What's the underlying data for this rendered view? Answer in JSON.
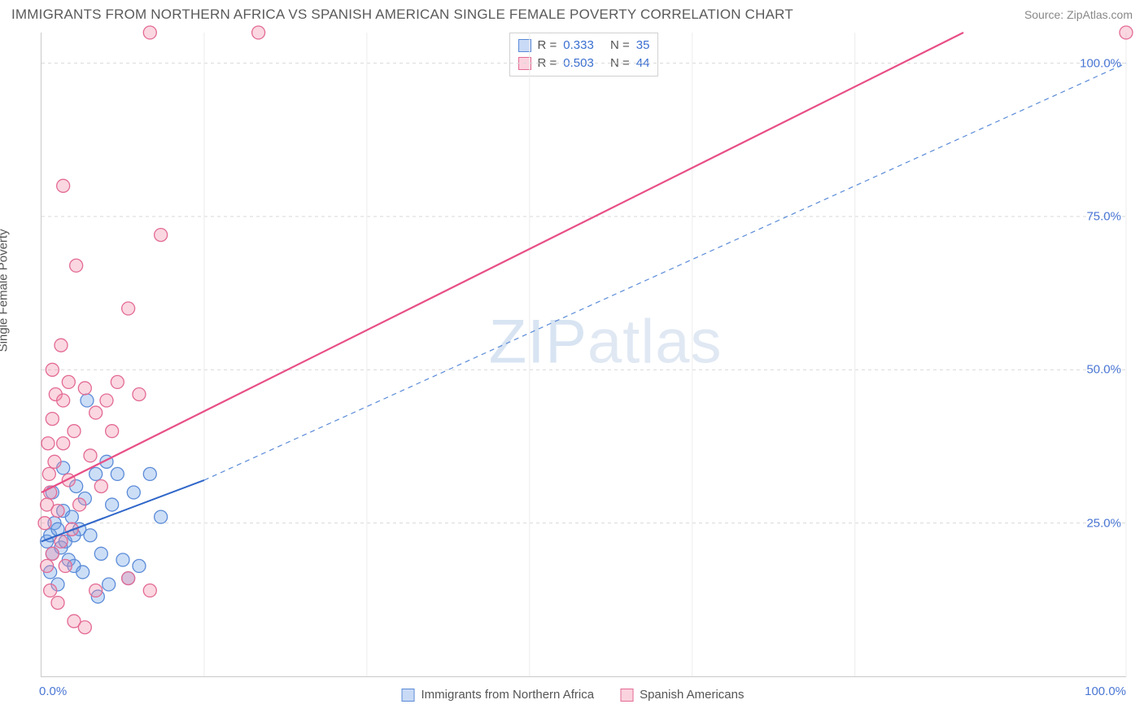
{
  "title": "IMMIGRANTS FROM NORTHERN AFRICA VS SPANISH AMERICAN SINGLE FEMALE POVERTY CORRELATION CHART",
  "source": "Source: ZipAtlas.com",
  "watermark_a": "ZIP",
  "watermark_b": "atlas",
  "ylabel": "Single Female Poverty",
  "chart": {
    "type": "scatter",
    "xlim": [
      0,
      100
    ],
    "ylim": [
      0,
      105
    ],
    "ytick_values": [
      25.0,
      50.0,
      75.0,
      100.0
    ],
    "ytick_labels": [
      "25.0%",
      "50.0%",
      "75.0%",
      "100.0%"
    ],
    "xtick_min_label": "0.0%",
    "xtick_max_label": "100.0%",
    "xticks_minor": [
      15,
      30,
      45,
      60,
      75,
      100
    ],
    "grid_color": "#d9d9d9",
    "background_color": "#ffffff",
    "series": [
      {
        "name": "Immigrants from Northern Africa",
        "color_fill": "rgba(110,160,230,0.35)",
        "color_stroke": "#5b8bd8",
        "r_value": "0.333",
        "n_value": "35",
        "marker_radius": 8,
        "line_solid": {
          "x1": 0,
          "y1": 22,
          "x2": 15,
          "y2": 32,
          "color": "#2f66c9",
          "width": 2.0
        },
        "line_dashed": {
          "x1": 15,
          "y1": 32,
          "x2": 100,
          "y2": 100,
          "color": "#5b8bd8",
          "width": 1.2,
          "dash": "6,5"
        },
        "points": [
          [
            0.5,
            22
          ],
          [
            0.8,
            23
          ],
          [
            1.0,
            20
          ],
          [
            1.2,
            25
          ],
          [
            1.5,
            24
          ],
          [
            1.8,
            21
          ],
          [
            2.0,
            27
          ],
          [
            2.2,
            22
          ],
          [
            2.5,
            19
          ],
          [
            2.8,
            26
          ],
          [
            3.0,
            18
          ],
          [
            3.2,
            31
          ],
          [
            3.5,
            24
          ],
          [
            3.8,
            17
          ],
          [
            4.0,
            29
          ],
          [
            4.5,
            23
          ],
          [
            5.0,
            33
          ],
          [
            5.5,
            20
          ],
          [
            6.0,
            35
          ],
          [
            6.5,
            28
          ],
          [
            7.0,
            33
          ],
          [
            7.5,
            19
          ],
          [
            8.0,
            16
          ],
          [
            8.5,
            30
          ],
          [
            4.2,
            45
          ],
          [
            10.0,
            33
          ],
          [
            11.0,
            26
          ],
          [
            5.2,
            13
          ],
          [
            6.2,
            15
          ],
          [
            9.0,
            18
          ],
          [
            2.0,
            34
          ],
          [
            1.0,
            30
          ],
          [
            0.8,
            17
          ],
          [
            1.5,
            15
          ],
          [
            3.0,
            23
          ]
        ]
      },
      {
        "name": "Spanish Americans",
        "color_fill": "rgba(240,140,170,0.35)",
        "color_stroke": "#e36a94",
        "r_value": "0.503",
        "n_value": "44",
        "marker_radius": 8,
        "line_solid": {
          "x1": 0,
          "y1": 30,
          "x2": 85,
          "y2": 105,
          "color": "#e84f86",
          "width": 2.2
        },
        "points": [
          [
            0.3,
            25
          ],
          [
            0.5,
            28
          ],
          [
            0.8,
            30
          ],
          [
            1.0,
            20
          ],
          [
            1.2,
            35
          ],
          [
            1.5,
            27
          ],
          [
            1.8,
            22
          ],
          [
            2.0,
            38
          ],
          [
            2.2,
            18
          ],
          [
            2.5,
            32
          ],
          [
            2.8,
            24
          ],
          [
            3.0,
            40
          ],
          [
            3.5,
            28
          ],
          [
            4.0,
            47
          ],
          [
            4.5,
            36
          ],
          [
            5.0,
            43
          ],
          [
            5.5,
            31
          ],
          [
            6.0,
            45
          ],
          [
            7.0,
            48
          ],
          [
            8.0,
            60
          ],
          [
            9.0,
            46
          ],
          [
            10.0,
            105
          ],
          [
            20.0,
            105
          ],
          [
            100.0,
            105
          ],
          [
            3.2,
            67
          ],
          [
            1.0,
            50
          ],
          [
            1.3,
            46
          ],
          [
            2.0,
            80
          ],
          [
            0.6,
            38
          ],
          [
            11.0,
            72
          ],
          [
            3.0,
            9
          ],
          [
            4.0,
            8
          ],
          [
            5.0,
            14
          ],
          [
            8.0,
            16
          ],
          [
            10.0,
            14
          ],
          [
            0.5,
            18
          ],
          [
            0.8,
            14
          ],
          [
            1.5,
            12
          ],
          [
            2.0,
            45
          ],
          [
            6.5,
            40
          ],
          [
            1.0,
            42
          ],
          [
            0.7,
            33
          ],
          [
            1.8,
            54
          ],
          [
            2.5,
            48
          ]
        ]
      }
    ],
    "legend_stats_labels": {
      "R": "R =",
      "N": "N ="
    }
  },
  "legend_bottom": {
    "series1_label": "Immigrants from Northern Africa",
    "series2_label": "Spanish Americans"
  }
}
